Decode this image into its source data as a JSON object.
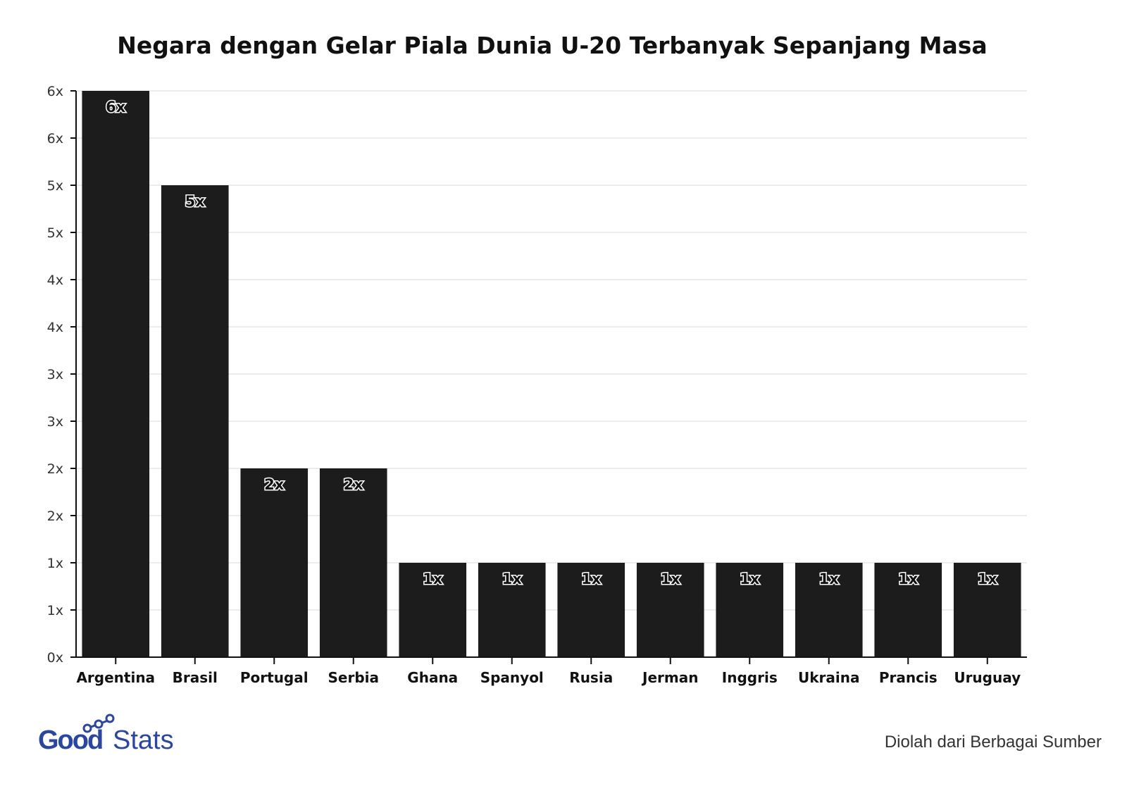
{
  "chart_data": {
    "type": "bar",
    "title": "Negara dengan Gelar Piala Dunia U-20 Terbanyak Sepanjang Masa",
    "categories": [
      "Argentina",
      "Brasil",
      "Portugal",
      "Serbia",
      "Ghana",
      "Spanyol",
      "Rusia",
      "Jerman",
      "Inggris",
      "Ukraina",
      "Prancis",
      "Uruguay"
    ],
    "values": [
      6,
      5,
      2,
      2,
      1,
      1,
      1,
      1,
      1,
      1,
      1,
      1
    ],
    "data_labels": [
      "6x",
      "5x",
      "2x",
      "2x",
      "1x",
      "1x",
      "1x",
      "1x",
      "1x",
      "1x",
      "1x",
      "1x"
    ],
    "yticks": [
      0,
      0.5,
      1,
      1.5,
      2,
      2.5,
      3,
      3.5,
      4,
      4.5,
      5,
      5.5,
      6
    ],
    "ytick_labels": [
      "0x",
      "1x",
      "1x",
      "2x",
      "2x",
      "3x",
      "3x",
      "4x",
      "4x",
      "5x",
      "5x",
      "6x",
      "6x"
    ],
    "ylim": [
      0,
      6
    ],
    "xlabel": "",
    "ylabel": "",
    "grid": true,
    "bar_color": "#1c1c1c"
  },
  "footer": {
    "logo_text": "GoodStats",
    "logo_color": "#2a46a0",
    "source": "Diolah dari Berbagai Sumber"
  }
}
